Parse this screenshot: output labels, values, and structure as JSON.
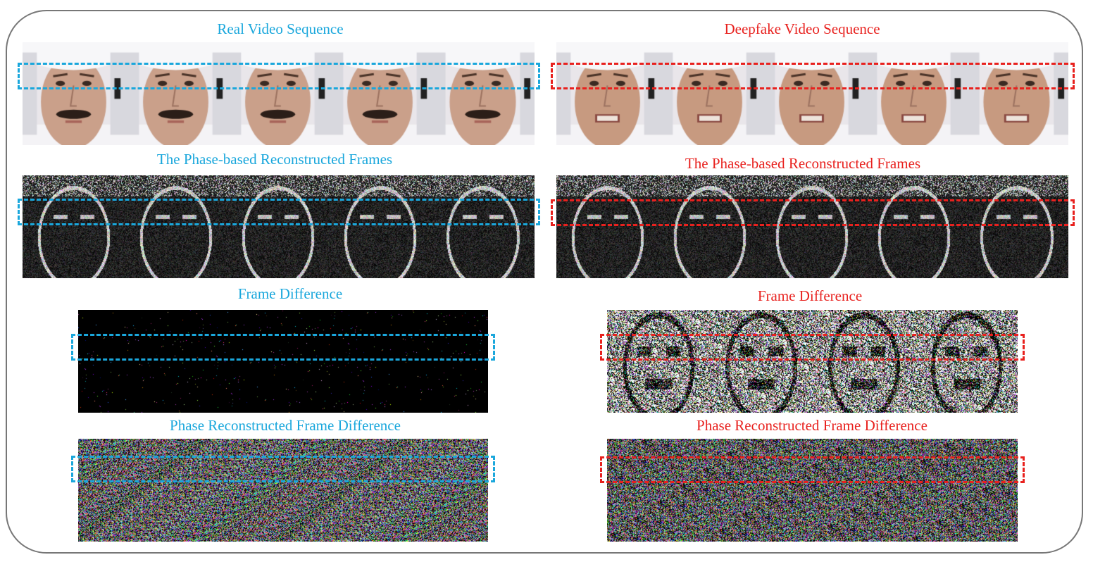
{
  "figure": {
    "real": {
      "video_title": "Real Video Sequence",
      "phase_title": "The Phase-based Reconstructed Frames",
      "diff_title": "Frame Difference",
      "phase_diff_title": "Phase Reconstructed Frame Difference",
      "frame_count": 5,
      "color": "#1aa7dc"
    },
    "fake": {
      "video_title": "Deepfake Video Sequence",
      "phase_title": "The Phase-based Reconstructed Frames",
      "diff_title": "Frame Difference",
      "phase_diff_title": "Phase Reconstructed Frame Difference",
      "frame_count": 5,
      "color": "#e8211e"
    }
  }
}
